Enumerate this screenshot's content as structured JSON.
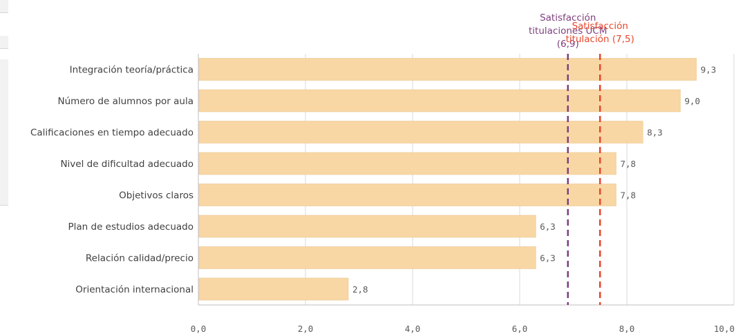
{
  "chart_data": {
    "type": "bar",
    "orientation": "horizontal",
    "categories": [
      "Integración teoría/práctica",
      "Número de alumnos por aula",
      "Calificaciones en tiempo adecuado",
      "Nivel de dificultad adecuado",
      "Objetivos claros",
      "Plan de estudios adecuado",
      "Relación calidad/precio",
      "Orientación internacional"
    ],
    "values": [
      9.3,
      9.0,
      8.3,
      7.8,
      7.8,
      6.3,
      6.3,
      2.8
    ],
    "value_labels": [
      "9,3",
      "9,0",
      "8,3",
      "7,8",
      "7,8",
      "6,3",
      "6,3",
      "2,8"
    ],
    "xlim": [
      0,
      10
    ],
    "x_ticks": [
      0,
      2,
      4,
      6,
      8,
      10
    ],
    "x_tick_labels": [
      "0,0",
      "2,0",
      "4,0",
      "6,0",
      "8,0",
      "10,0"
    ],
    "grid": true,
    "bar_color": "#f8d7a4",
    "reference_lines": [
      {
        "value": 6.9,
        "label_lines": [
          "Satisfacción",
          "titulaciones UCM",
          "(6,9)"
        ],
        "color": "#7d3f7d",
        "style": "dashed"
      },
      {
        "value": 7.5,
        "label_lines": [
          "Satisfacción",
          "titulación (7,5)"
        ],
        "color": "#e8462a",
        "style": "dashed"
      }
    ]
  }
}
